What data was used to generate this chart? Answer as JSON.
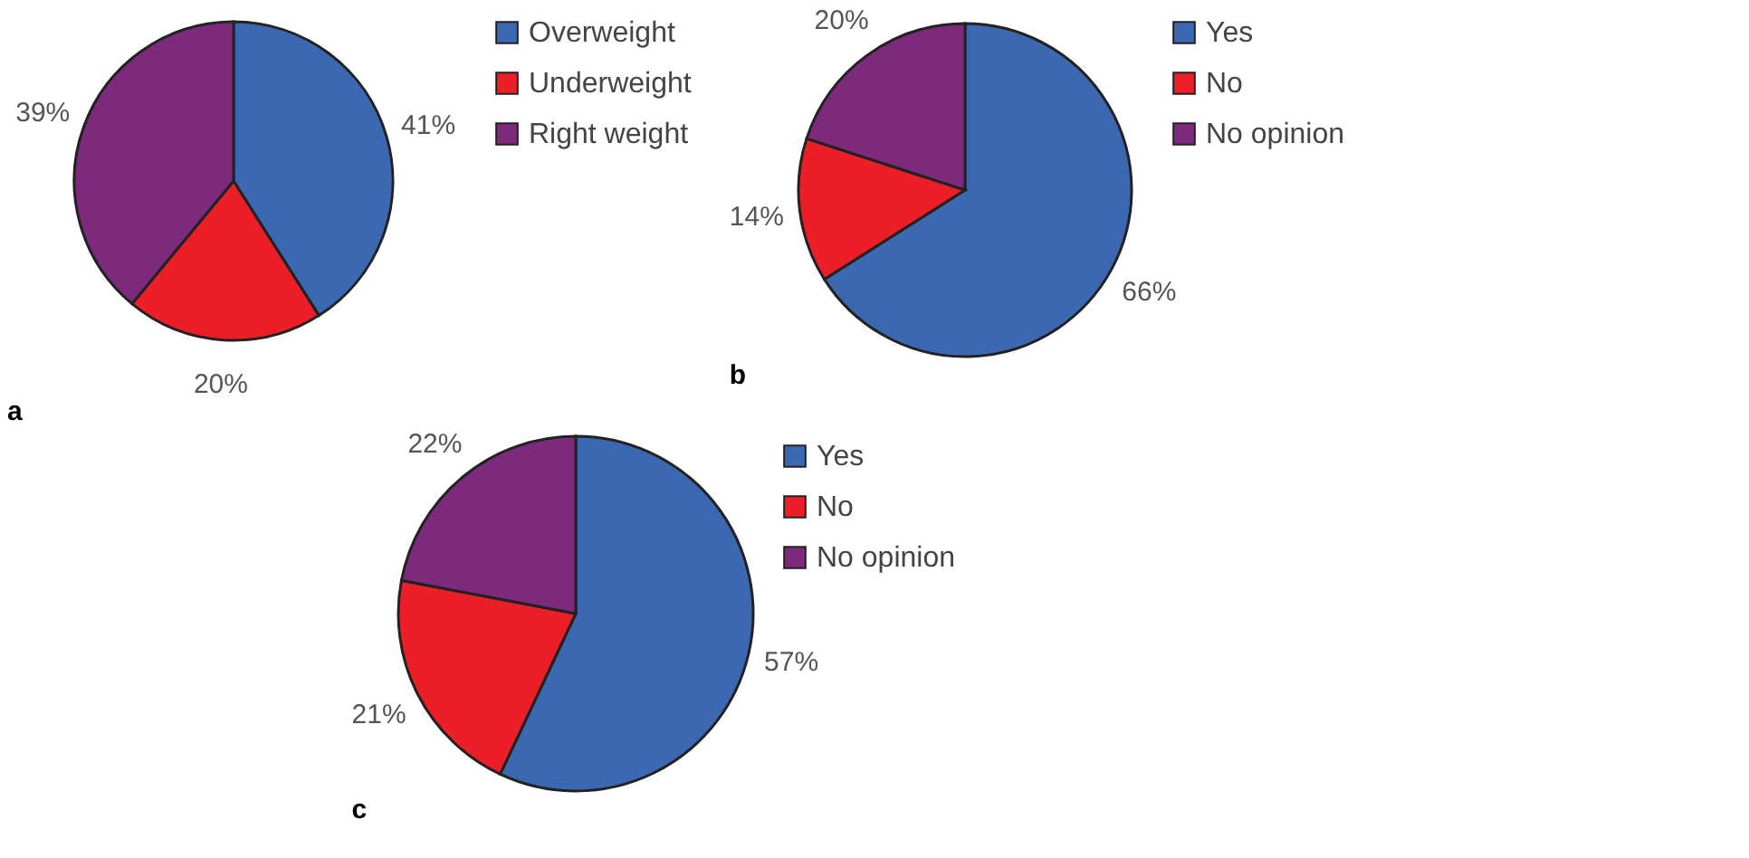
{
  "chart_data": [
    {
      "type": "pie",
      "annotations": [
        "a"
      ],
      "categories": [
        "Overweight",
        "Underweight",
        "Right weight"
      ],
      "values": [
        41,
        20,
        39
      ],
      "value_labels": [
        "41%",
        "20%",
        "39%"
      ],
      "colors": [
        "#3c68b1",
        "#ec1e27",
        "#7d2a7d"
      ],
      "legend": "right"
    },
    {
      "type": "pie",
      "annotations": [
        "b"
      ],
      "categories": [
        "Yes",
        "No",
        "No opinion"
      ],
      "values": [
        66,
        14,
        20
      ],
      "value_labels": [
        "66%",
        "14%",
        "20%"
      ],
      "colors": [
        "#3c68b1",
        "#ec1e27",
        "#7d2a7d"
      ],
      "legend": "right"
    },
    {
      "type": "pie",
      "annotations": [
        "c"
      ],
      "categories": [
        "Yes",
        "No",
        "No opinion"
      ],
      "values": [
        57,
        21,
        22
      ],
      "value_labels": [
        "57%",
        "21%",
        "22%"
      ],
      "colors": [
        "#3c68b1",
        "#ec1e27",
        "#7d2a7d"
      ],
      "legend": "right"
    }
  ]
}
